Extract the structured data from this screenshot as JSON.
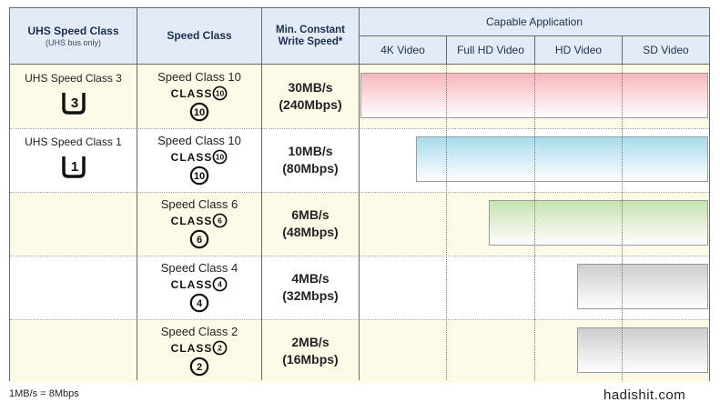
{
  "header": {
    "uhs_title": "UHS Speed Class",
    "uhs_sub": "(UHS bus only)",
    "speed_class": "Speed Class",
    "min_speed": "Min. Constant Write Speed*",
    "capable": "Capable Application",
    "apps": [
      "4K Video",
      "Full HD Video",
      "HD Video",
      "SD Video"
    ]
  },
  "rows": [
    {
      "uhs_label": "UHS Speed Class 3",
      "uhs_digit": "3",
      "sc_label": "Speed Class 10",
      "class_num": "10",
      "speed": "30MB/s",
      "mbps": "(240Mbps)",
      "covers_from": "4K Video",
      "bar_color": "#f6b6bc"
    },
    {
      "uhs_label": "UHS Speed Class 1",
      "uhs_digit": "1",
      "sc_label": "Speed Class 10",
      "class_num": "10",
      "speed": "10MB/s",
      "mbps": "(80Mbps)",
      "covers_from": "Full HD Video",
      "bar_color": "#a9daec"
    },
    {
      "uhs_label": "",
      "uhs_digit": "",
      "sc_label": "Speed Class 6",
      "class_num": "6",
      "speed": "6MB/s",
      "mbps": "(48Mbps)",
      "covers_from": "HD Video",
      "bar_color": "#c6e2b0"
    },
    {
      "uhs_label": "",
      "uhs_digit": "",
      "sc_label": "Speed Class 4",
      "class_num": "4",
      "speed": "4MB/s",
      "mbps": "(32Mbps)",
      "covers_from": "SD Video",
      "bar_color": "#cdcdcd"
    },
    {
      "uhs_label": "",
      "uhs_digit": "",
      "sc_label": "Speed Class 2",
      "class_num": "2",
      "speed": "2MB/s",
      "mbps": "(16Mbps)",
      "covers_from": "SD Video",
      "bar_color": "#cdcdcd"
    }
  ],
  "class_word": "CLASS",
  "footnote": "1MB/s = 8Mbps",
  "brand": "hadishit.com"
}
